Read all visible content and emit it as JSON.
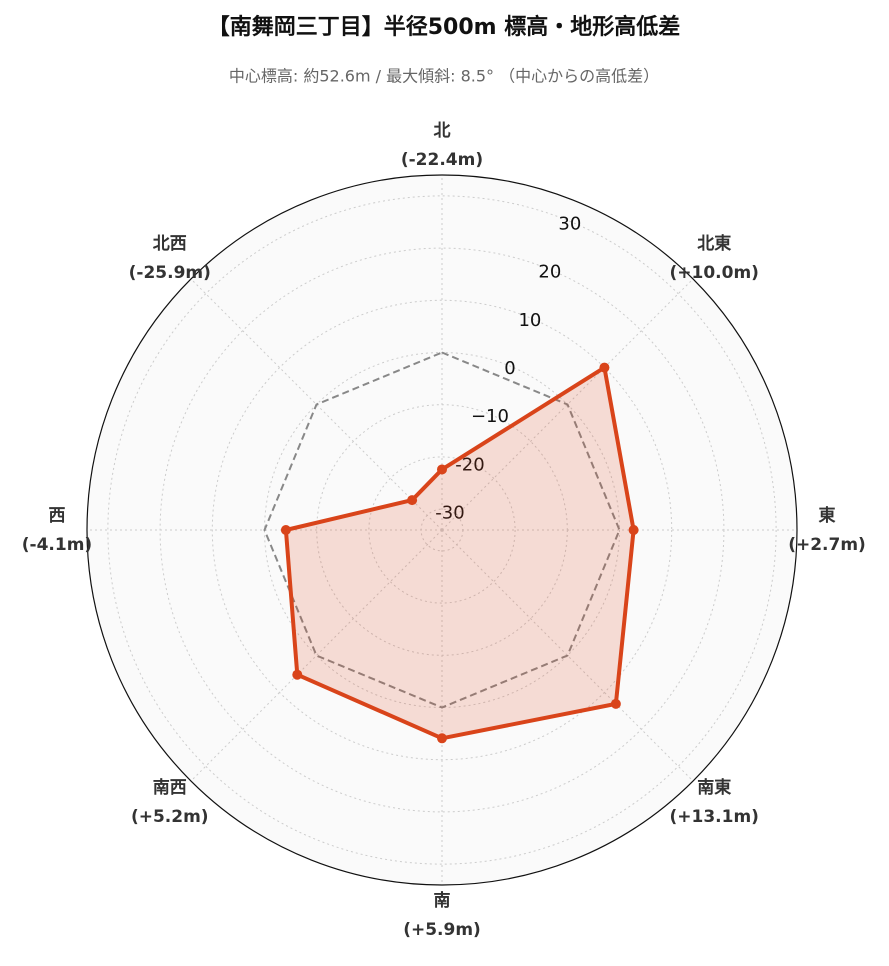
{
  "chart_data": {
    "type": "radar",
    "title": "【南舞岡三丁目】半径500m 標高・地形高低差",
    "subtitle": "中心標高: 約52.6m / 最大傾斜: 8.5° （中心からの高低差）",
    "categories": [
      "北",
      "北東",
      "東",
      "南東",
      "南",
      "南西",
      "西",
      "北西"
    ],
    "values": [
      -22.4,
      10.0,
      2.7,
      13.1,
      5.9,
      5.2,
      -4.1,
      -25.9
    ],
    "value_labels": [
      "(-22.4m)",
      "(+10.0m)",
      "(+2.7m)",
      "(+13.1m)",
      "(+5.9m)",
      "(+5.2m)",
      "(-4.1m)",
      "(-25.9m)"
    ],
    "color": "#d9441a",
    "reference": 0,
    "rlim": [
      -34,
      34
    ],
    "rticks": [
      -30,
      -20,
      {
        "value": -10,
        "label": "−10"
      },
      0,
      10,
      20,
      30
    ],
    "grid": true
  }
}
